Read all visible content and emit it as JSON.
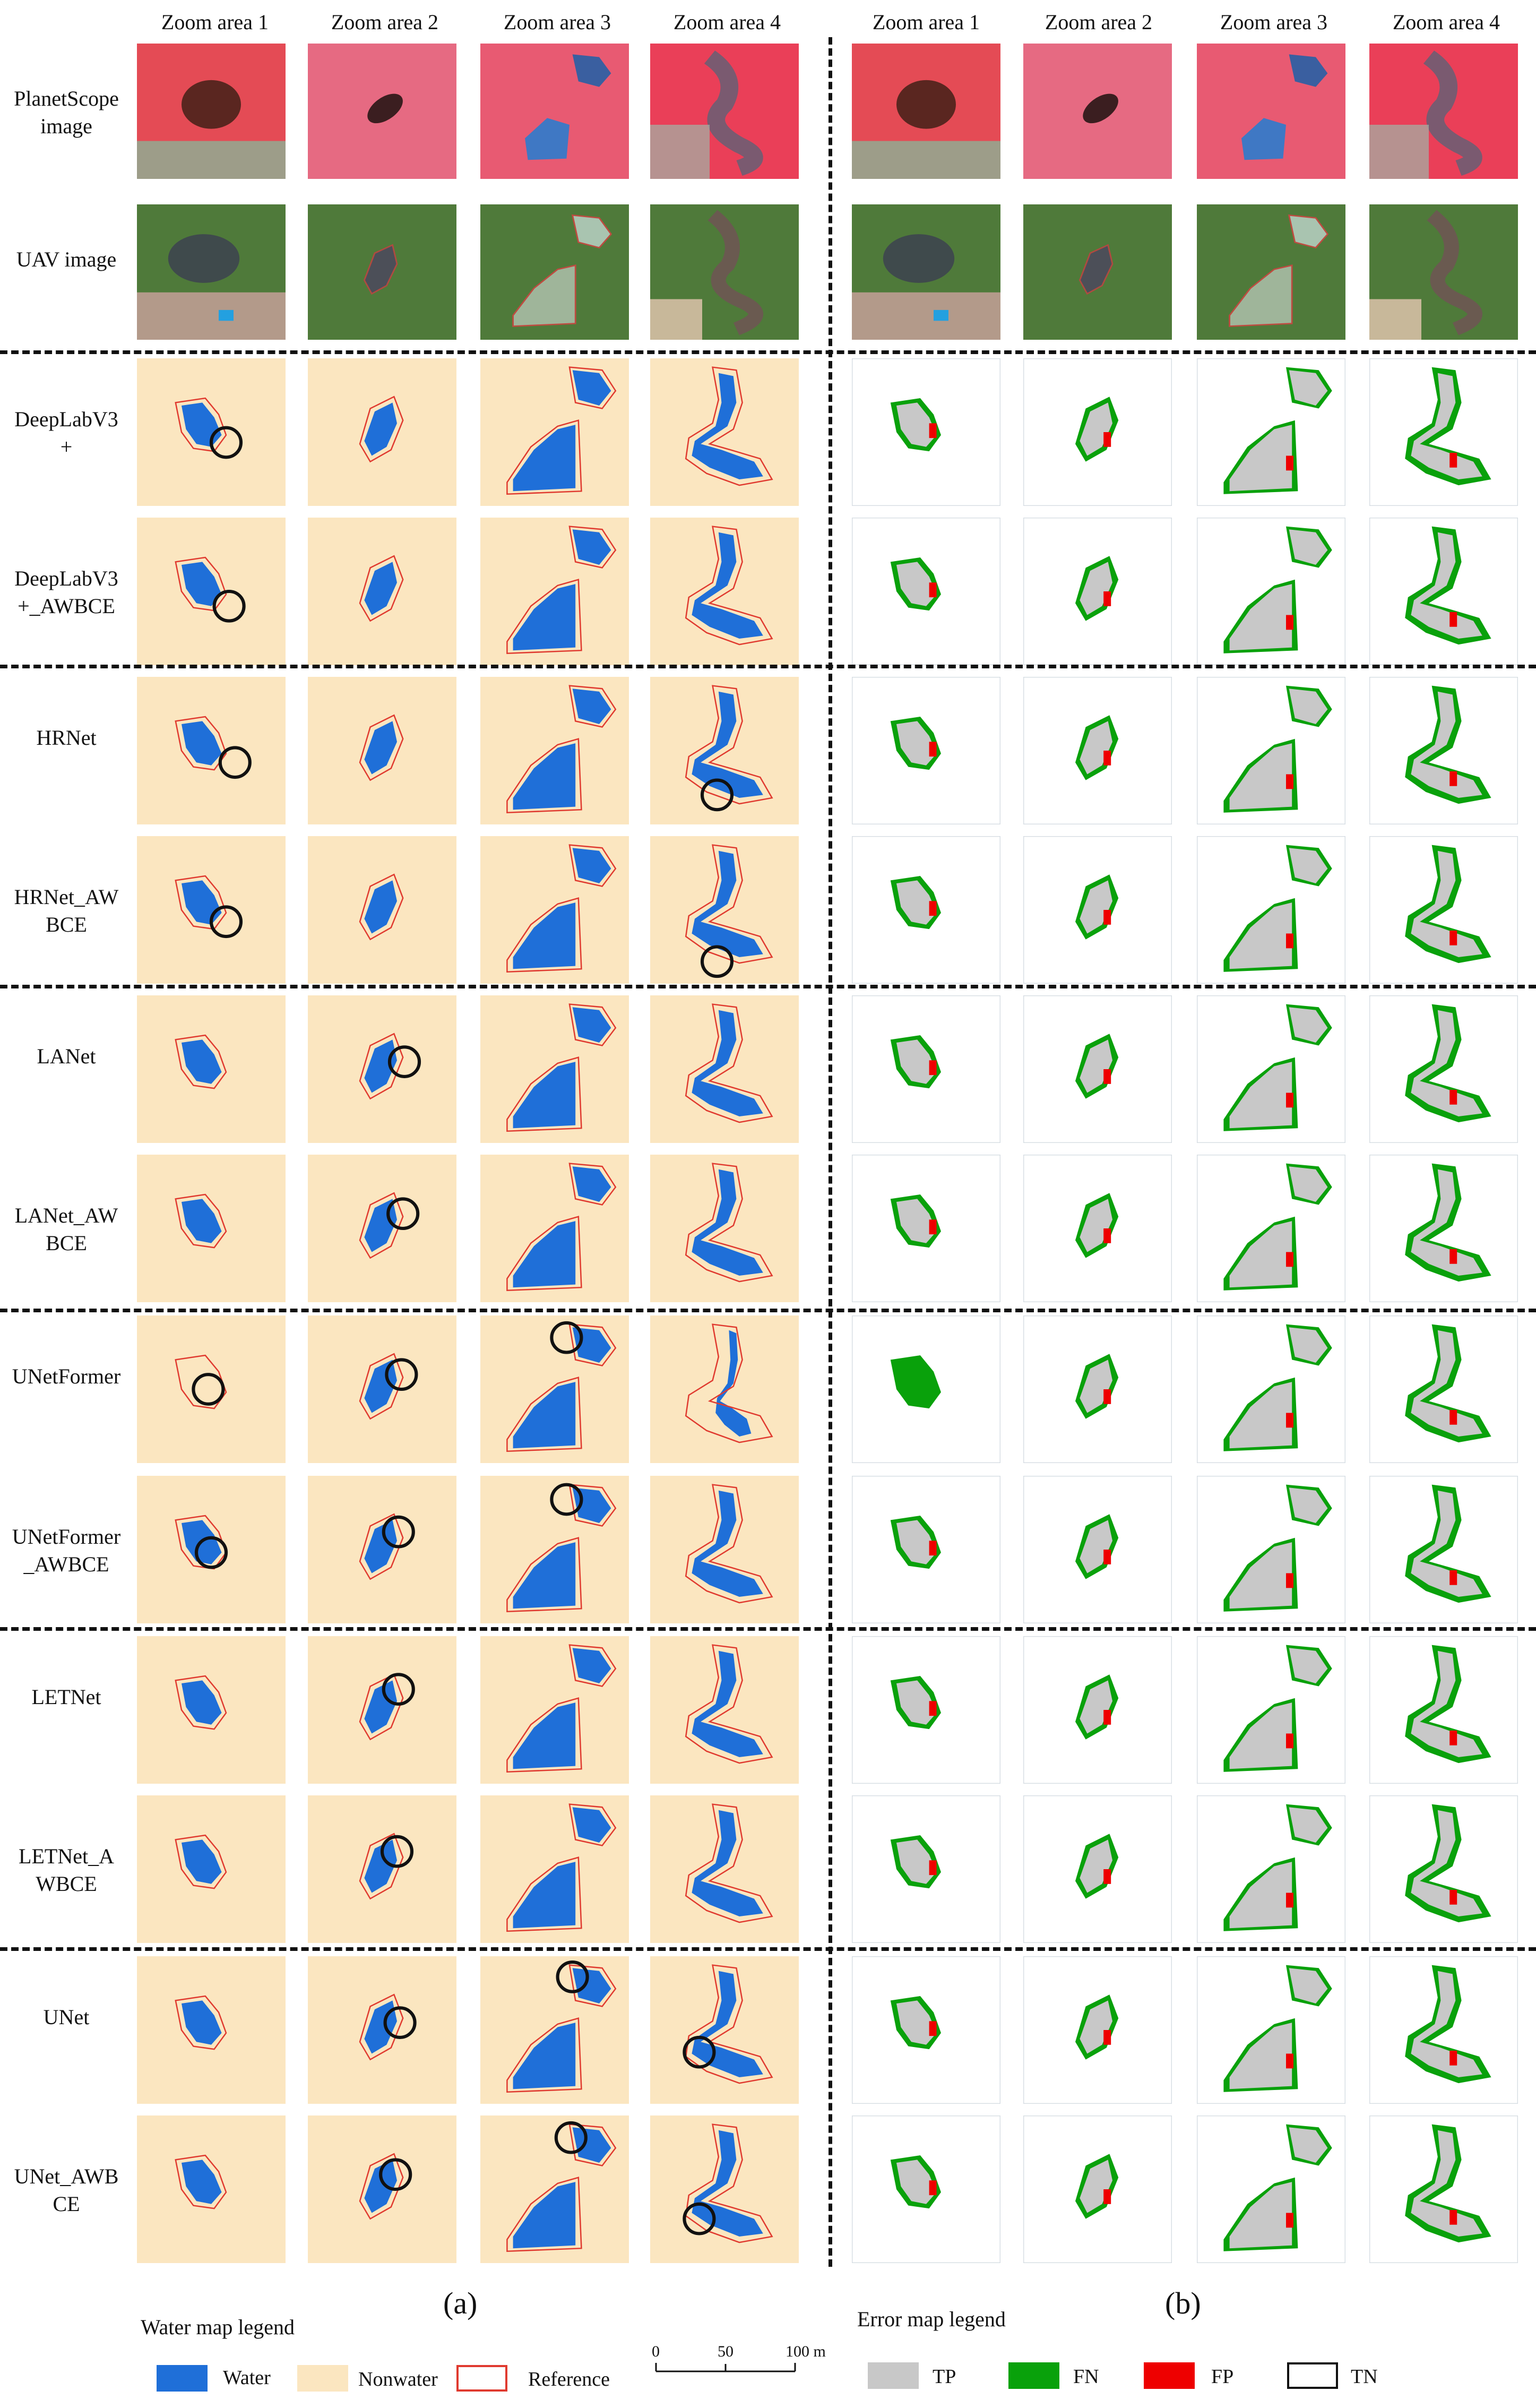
{
  "headers": {
    "left": [
      "Zoom area 1",
      "Zoom area 2",
      "Zoom area 3",
      "Zoom area 4"
    ],
    "right": [
      "Zoom area 1",
      "Zoom area 2",
      "Zoom area 3",
      "Zoom area 4"
    ]
  },
  "rows": [
    {
      "label": "PlanetScope\nimage",
      "kind": "planet"
    },
    {
      "label": "UAV  image",
      "kind": "uav"
    },
    {
      "label": "DeepLabV3\n+",
      "kind": "map"
    },
    {
      "label": "DeepLabV3\n+_AWBCE",
      "kind": "map"
    },
    {
      "label": "HRNet",
      "kind": "map"
    },
    {
      "label": "HRNet_AW\nBCE",
      "kind": "map"
    },
    {
      "label": "LANet",
      "kind": "map"
    },
    {
      "label": "LANet_AW\nBCE",
      "kind": "map"
    },
    {
      "label": "UNetFormer",
      "kind": "map"
    },
    {
      "label": "UNetFormer\n_AWBCE",
      "kind": "map"
    },
    {
      "label": "LETNet",
      "kind": "map"
    },
    {
      "label": "LETNet_A\nWBCE",
      "kind": "map"
    },
    {
      "label": "UNet",
      "kind": "map"
    },
    {
      "label": "UNet_AWB\nCE",
      "kind": "map"
    }
  ],
  "panel_tags": {
    "a": "(a)",
    "b": "(b)"
  },
  "water_legend": {
    "title": "Water map legend",
    "items": [
      {
        "label": "Water",
        "color": "#1f6fd8"
      },
      {
        "label": "Nonwater",
        "color": "#fbe6c0"
      },
      {
        "label": "Reference",
        "color": "#e03a2f"
      }
    ],
    "scale_ticks": [
      "0",
      "50",
      "100 m"
    ]
  },
  "error_legend": {
    "title": "Error map legend",
    "items": [
      {
        "label": "TP",
        "color": "#c8c8c8"
      },
      {
        "label": "FN",
        "color": "#09a10b"
      },
      {
        "label": "FP",
        "color": "#ee0000"
      },
      {
        "label": "TN",
        "color": "#ffffff"
      }
    ]
  },
  "colors": {
    "water": "#1f6fd8",
    "nonwater": "#fbe6c0",
    "reference": "#e03a2f",
    "tp": "#c8c8c8",
    "fn": "#09a10b",
    "fp": "#ee0000",
    "circle": "#111111"
  }
}
